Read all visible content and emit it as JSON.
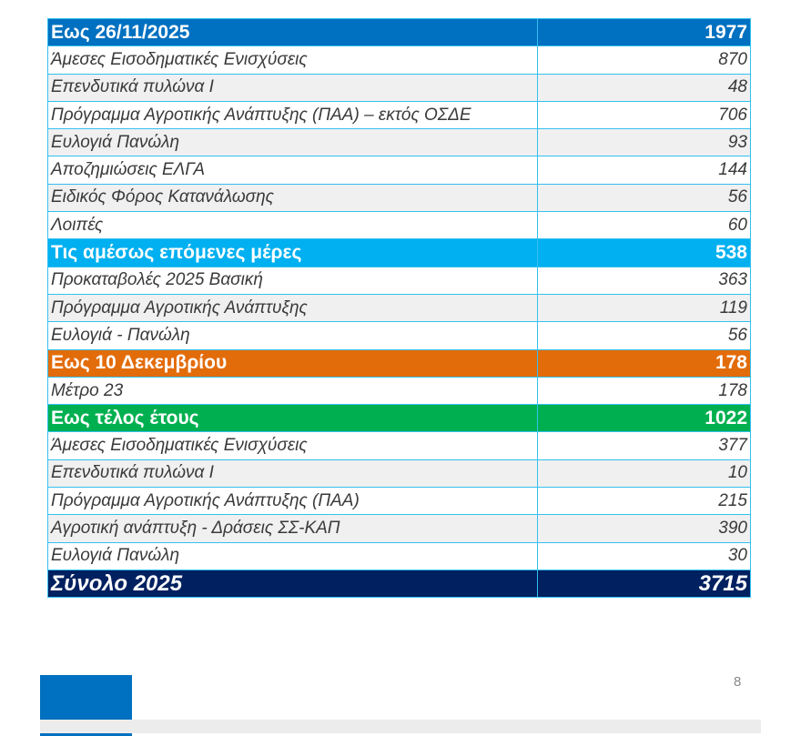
{
  "sections": [
    {
      "title": "Εως 26/11/2025",
      "total": "1977",
      "color": "#0070c0",
      "items": [
        {
          "label": "Άμεσες Εισοδηματικές Ενισχύσεις",
          "value": "870"
        },
        {
          "label": "Επενδυτικά πυλώνα Ι",
          "value": "48"
        },
        {
          "label": "Πρόγραμμα Αγροτικής Ανάπτυξης (ΠΑΑ) – εκτός ΟΣΔΕ",
          "value": "706"
        },
        {
          "label": "Ευλογιά Πανώλη",
          "value": "93"
        },
        {
          "label": "Αποζημιώσεις ΕΛΓΑ",
          "value": "144"
        },
        {
          "label": "Ειδικός Φόρος Κατανάλωσης",
          "value": "56"
        },
        {
          "label": "Λοιπές",
          "value": "60"
        }
      ]
    },
    {
      "title": "Τις αμέσως επόμενες μέρες",
      "total": "538",
      "color": "#00b0f0",
      "items": [
        {
          "label": "Προκαταβολές 2025 Βασική",
          "value": "363"
        },
        {
          "label": "Πρόγραμμα Αγροτικής Ανάπτυξης",
          "value": "119"
        },
        {
          "label": "Ευλογιά - Πανώλη",
          "value": "56"
        }
      ]
    },
    {
      "title": "Εως 10 Δεκεμβρίου",
      "total": "178",
      "color": "#e36c0a",
      "items": [
        {
          "label": "Μέτρο 23",
          "value": "178"
        }
      ]
    },
    {
      "title": "Εως τέλος έτους",
      "total": "1022",
      "color": "#00b050",
      "items": [
        {
          "label": "Άμεσες Εισοδηματικές Ενισχύσεις",
          "value": "377"
        },
        {
          "label": "Επενδυτικά πυλώνα Ι",
          "value": "10"
        },
        {
          "label": "Πρόγραμμα Αγροτικής Ανάπτυξης (ΠΑΑ)",
          "value": "215"
        },
        {
          "label": "Αγροτική ανάπτυξη - Δράσεις ΣΣ-ΚΑΠ",
          "value": "390"
        },
        {
          "label": "Ευλογιά Πανώλη",
          "value": "30"
        }
      ]
    }
  ],
  "grand_total": {
    "label": "Σύνολο 2025",
    "value": "3715",
    "color": "#002060"
  },
  "page_number": "8"
}
